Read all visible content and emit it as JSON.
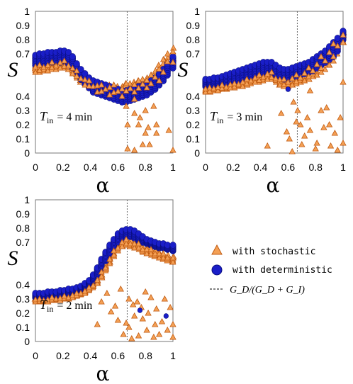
{
  "chart_data": [
    {
      "type": "scatter",
      "panel_label": {
        "symbol": "T",
        "subscript": "in",
        "value": "= 4 min"
      },
      "xlabel": "α",
      "ylabel": "S",
      "xlim": [
        0,
        1
      ],
      "ylim": [
        0,
        1
      ],
      "xticks": [
        "0",
        "0.2",
        "0.4",
        "0.6",
        "0.8",
        "1"
      ],
      "yticks": [
        "0",
        "0.1",
        "0.2",
        "0.3",
        "0.4",
        "0.7",
        "0.8",
        "0.9",
        "1"
      ],
      "vline_x": 0.667,
      "deterministic_band": {
        "x": [
          0.0,
          0.03,
          0.06,
          0.09,
          0.12,
          0.15,
          0.18,
          0.21,
          0.24,
          0.27,
          0.3,
          0.33,
          0.36,
          0.39,
          0.42,
          0.45,
          0.48,
          0.51,
          0.54,
          0.57,
          0.6,
          0.63,
          0.66,
          0.69,
          0.72,
          0.75,
          0.78,
          0.81,
          0.84,
          0.87,
          0.9,
          0.93,
          0.96,
          1.0
        ],
        "low": [
          0.62,
          0.63,
          0.63,
          0.64,
          0.64,
          0.64,
          0.64,
          0.64,
          0.63,
          0.6,
          0.56,
          0.52,
          0.49,
          0.46,
          0.43,
          0.42,
          0.41,
          0.4,
          0.39,
          0.38,
          0.37,
          0.36,
          0.36,
          0.37,
          0.38,
          0.39,
          0.4,
          0.41,
          0.43,
          0.45,
          0.48,
          0.51,
          0.55,
          0.6
        ],
        "high": [
          0.69,
          0.7,
          0.7,
          0.71,
          0.71,
          0.71,
          0.72,
          0.72,
          0.71,
          0.68,
          0.63,
          0.59,
          0.56,
          0.53,
          0.51,
          0.5,
          0.49,
          0.48,
          0.47,
          0.46,
          0.45,
          0.44,
          0.44,
          0.45,
          0.46,
          0.47,
          0.48,
          0.49,
          0.51,
          0.53,
          0.56,
          0.59,
          0.63,
          0.68
        ]
      },
      "stochastic_band": {
        "x": [
          0.0,
          0.03,
          0.06,
          0.09,
          0.12,
          0.15,
          0.18,
          0.21,
          0.24,
          0.27,
          0.3,
          0.33,
          0.36,
          0.39,
          0.42,
          0.45,
          0.48,
          0.51,
          0.54,
          0.57,
          0.6,
          0.63,
          0.66,
          0.69,
          0.72,
          0.75,
          0.78,
          0.81,
          0.84,
          0.87,
          0.9,
          0.93,
          0.96,
          1.0
        ],
        "low": [
          0.57,
          0.57,
          0.58,
          0.58,
          0.59,
          0.59,
          0.6,
          0.6,
          0.59,
          0.56,
          0.53,
          0.5,
          0.48,
          0.46,
          0.44,
          0.43,
          0.42,
          0.42,
          0.41,
          0.41,
          0.4,
          0.4,
          0.42,
          0.42,
          0.43,
          0.44,
          0.45,
          0.46,
          0.47,
          0.49,
          0.51,
          0.54,
          0.59,
          0.64
        ],
        "high": [
          0.62,
          0.62,
          0.63,
          0.63,
          0.64,
          0.64,
          0.65,
          0.65,
          0.64,
          0.61,
          0.58,
          0.55,
          0.53,
          0.51,
          0.5,
          0.49,
          0.48,
          0.48,
          0.48,
          0.48,
          0.47,
          0.47,
          0.49,
          0.49,
          0.5,
          0.51,
          0.52,
          0.53,
          0.55,
          0.58,
          0.62,
          0.66,
          0.7,
          0.74
        ]
      },
      "stochastic_scatter": [
        [
          0.66,
          0.33
        ],
        [
          0.67,
          0.2
        ],
        [
          0.67,
          0.03
        ],
        [
          0.72,
          0.02
        ],
        [
          0.72,
          0.28
        ],
        [
          0.75,
          0.2
        ],
        [
          0.78,
          0.06
        ],
        [
          0.8,
          0.14
        ],
        [
          0.82,
          0.18
        ],
        [
          0.86,
          0.33
        ],
        [
          0.88,
          0.14
        ],
        [
          0.88,
          0.2
        ],
        [
          0.97,
          0.16
        ],
        [
          1.0,
          0.02
        ],
        [
          0.72,
          0.38
        ],
        [
          0.76,
          0.25
        ],
        [
          0.8,
          0.3
        ],
        [
          0.83,
          0.06
        ]
      ],
      "deterministic_scatter": []
    },
    {
      "type": "scatter",
      "panel_label": {
        "symbol": "T",
        "subscript": "in",
        "value": "= 3 min"
      },
      "xlabel": "α",
      "ylabel": "S",
      "xlim": [
        0,
        1
      ],
      "ylim": [
        0,
        1
      ],
      "xticks": [
        "0",
        "0.2",
        "0.4",
        "0.6",
        "0.8",
        "1"
      ],
      "yticks": [
        "0",
        "0.1",
        "0.2",
        "0.3",
        "0.4",
        "0.7",
        "0.8",
        "0.9",
        "1"
      ],
      "vline_x": 0.667,
      "deterministic_band": {
        "x": [
          0.0,
          0.03,
          0.06,
          0.09,
          0.12,
          0.15,
          0.18,
          0.21,
          0.24,
          0.27,
          0.3,
          0.33,
          0.36,
          0.39,
          0.42,
          0.45,
          0.48,
          0.51,
          0.54,
          0.57,
          0.6,
          0.63,
          0.66,
          0.69,
          0.72,
          0.75,
          0.78,
          0.81,
          0.84,
          0.87,
          0.9,
          0.93,
          0.96,
          1.0
        ],
        "low": [
          0.47,
          0.47,
          0.48,
          0.48,
          0.49,
          0.49,
          0.5,
          0.5,
          0.51,
          0.52,
          0.53,
          0.54,
          0.55,
          0.56,
          0.56,
          0.57,
          0.57,
          0.55,
          0.53,
          0.52,
          0.52,
          0.53,
          0.54,
          0.55,
          0.56,
          0.57,
          0.58,
          0.6,
          0.62,
          0.64,
          0.66,
          0.68,
          0.72,
          0.8
        ],
        "high": [
          0.52,
          0.52,
          0.53,
          0.53,
          0.54,
          0.55,
          0.56,
          0.57,
          0.58,
          0.59,
          0.6,
          0.61,
          0.62,
          0.63,
          0.64,
          0.64,
          0.64,
          0.62,
          0.6,
          0.59,
          0.59,
          0.6,
          0.61,
          0.62,
          0.63,
          0.64,
          0.66,
          0.68,
          0.7,
          0.72,
          0.75,
          0.78,
          0.81,
          0.86
        ]
      },
      "stochastic_band": {
        "x": [
          0.0,
          0.03,
          0.06,
          0.09,
          0.12,
          0.15,
          0.18,
          0.21,
          0.24,
          0.27,
          0.3,
          0.33,
          0.36,
          0.39,
          0.42,
          0.45,
          0.48,
          0.51,
          0.54,
          0.57,
          0.6,
          0.63,
          0.66,
          0.69,
          0.72,
          0.75,
          0.78,
          0.81,
          0.84,
          0.87,
          0.9,
          0.93,
          0.96,
          1.0
        ],
        "low": [
          0.43,
          0.43,
          0.44,
          0.44,
          0.45,
          0.45,
          0.46,
          0.46,
          0.47,
          0.47,
          0.48,
          0.49,
          0.5,
          0.5,
          0.51,
          0.52,
          0.52,
          0.5,
          0.48,
          0.47,
          0.47,
          0.48,
          0.49,
          0.5,
          0.51,
          0.52,
          0.54,
          0.55,
          0.57,
          0.59,
          0.62,
          0.65,
          0.7,
          0.78
        ],
        "high": [
          0.46,
          0.46,
          0.47,
          0.47,
          0.48,
          0.48,
          0.49,
          0.49,
          0.5,
          0.51,
          0.52,
          0.53,
          0.54,
          0.55,
          0.56,
          0.57,
          0.57,
          0.55,
          0.53,
          0.52,
          0.53,
          0.54,
          0.55,
          0.56,
          0.58,
          0.6,
          0.62,
          0.65,
          0.68,
          0.71,
          0.74,
          0.77,
          0.81,
          0.85
        ]
      },
      "stochastic_scatter": [
        [
          0.45,
          0.05
        ],
        [
          0.55,
          0.28
        ],
        [
          0.59,
          0.15
        ],
        [
          0.61,
          0.1
        ],
        [
          0.63,
          0.01
        ],
        [
          0.64,
          0.36
        ],
        [
          0.67,
          0.3
        ],
        [
          0.69,
          0.2
        ],
        [
          0.7,
          0.06
        ],
        [
          0.72,
          0.12
        ],
        [
          0.74,
          0.25
        ],
        [
          0.76,
          0.16
        ],
        [
          0.8,
          0.03
        ],
        [
          0.81,
          0.07
        ],
        [
          0.84,
          0.3
        ],
        [
          0.86,
          0.18
        ],
        [
          0.88,
          0.32
        ],
        [
          0.9,
          0.2
        ],
        [
          0.91,
          0.05
        ],
        [
          0.94,
          0.14
        ],
        [
          0.96,
          0.02
        ],
        [
          0.98,
          0.25
        ],
        [
          1.0,
          0.07
        ],
        [
          1.0,
          0.5
        ],
        [
          0.76,
          0.44
        ],
        [
          0.66,
          0.22
        ]
      ],
      "deterministic_scatter": [
        [
          0.6,
          0.45
        ]
      ]
    },
    {
      "type": "scatter",
      "panel_label": {
        "symbol": "T",
        "subscript": "in",
        "value": "= 2 min"
      },
      "xlabel": "α",
      "ylabel": "S",
      "xlim": [
        0,
        1
      ],
      "ylim": [
        0,
        1
      ],
      "xticks": [
        "0",
        "0.2",
        "0.4",
        "0.6",
        "0.8",
        "1"
      ],
      "yticks": [
        "0",
        "0.1",
        "0.2",
        "0.3",
        "0.4",
        "0.7",
        "0.8",
        "0.9",
        "1"
      ],
      "vline_x": 0.667,
      "deterministic_band": {
        "x": [
          0.0,
          0.03,
          0.06,
          0.09,
          0.12,
          0.15,
          0.18,
          0.21,
          0.24,
          0.27,
          0.3,
          0.33,
          0.36,
          0.39,
          0.42,
          0.45,
          0.48,
          0.51,
          0.54,
          0.57,
          0.6,
          0.63,
          0.66,
          0.69,
          0.72,
          0.75,
          0.78,
          0.81,
          0.84,
          0.87,
          0.9,
          0.93,
          0.96,
          1.0
        ],
        "low": [
          0.31,
          0.31,
          0.31,
          0.31,
          0.32,
          0.32,
          0.32,
          0.33,
          0.33,
          0.34,
          0.35,
          0.36,
          0.38,
          0.4,
          0.43,
          0.47,
          0.52,
          0.57,
          0.62,
          0.66,
          0.7,
          0.73,
          0.74,
          0.74,
          0.73,
          0.71,
          0.7,
          0.69,
          0.68,
          0.67,
          0.66,
          0.66,
          0.65,
          0.64
        ],
        "high": [
          0.34,
          0.34,
          0.34,
          0.35,
          0.35,
          0.35,
          0.36,
          0.36,
          0.37,
          0.37,
          0.38,
          0.39,
          0.41,
          0.43,
          0.47,
          0.52,
          0.58,
          0.63,
          0.68,
          0.72,
          0.76,
          0.78,
          0.79,
          0.79,
          0.78,
          0.76,
          0.74,
          0.72,
          0.71,
          0.7,
          0.69,
          0.69,
          0.68,
          0.68
        ]
      },
      "stochastic_band": {
        "x": [
          0.0,
          0.03,
          0.06,
          0.09,
          0.12,
          0.15,
          0.18,
          0.21,
          0.24,
          0.27,
          0.3,
          0.33,
          0.36,
          0.39,
          0.42,
          0.45,
          0.48,
          0.51,
          0.54,
          0.57,
          0.6,
          0.63,
          0.66,
          0.69,
          0.72,
          0.75,
          0.78,
          0.81,
          0.84,
          0.87,
          0.9,
          0.93,
          0.96,
          1.0
        ],
        "low": [
          0.28,
          0.28,
          0.28,
          0.28,
          0.29,
          0.29,
          0.29,
          0.3,
          0.3,
          0.31,
          0.32,
          0.33,
          0.34,
          0.36,
          0.38,
          0.41,
          0.45,
          0.5,
          0.55,
          0.6,
          0.64,
          0.67,
          0.68,
          0.67,
          0.66,
          0.65,
          0.63,
          0.62,
          0.61,
          0.6,
          0.59,
          0.58,
          0.57,
          0.56
        ],
        "high": [
          0.3,
          0.3,
          0.3,
          0.3,
          0.31,
          0.31,
          0.31,
          0.32,
          0.32,
          0.33,
          0.34,
          0.35,
          0.36,
          0.38,
          0.41,
          0.44,
          0.49,
          0.54,
          0.59,
          0.64,
          0.68,
          0.71,
          0.72,
          0.71,
          0.7,
          0.69,
          0.67,
          0.66,
          0.65,
          0.64,
          0.63,
          0.62,
          0.61,
          0.6
        ]
      },
      "stochastic_scatter": [
        [
          0.45,
          0.12
        ],
        [
          0.48,
          0.28
        ],
        [
          0.52,
          0.34
        ],
        [
          0.55,
          0.21
        ],
        [
          0.58,
          0.25
        ],
        [
          0.62,
          0.37
        ],
        [
          0.64,
          0.05
        ],
        [
          0.66,
          0.13
        ],
        [
          0.68,
          0.3
        ],
        [
          0.68,
          0.1
        ],
        [
          0.7,
          0.02
        ],
        [
          0.72,
          0.18
        ],
        [
          0.74,
          0.28
        ],
        [
          0.75,
          0.04
        ],
        [
          0.77,
          0.24
        ],
        [
          0.78,
          0.16
        ],
        [
          0.8,
          0.35
        ],
        [
          0.81,
          0.08
        ],
        [
          0.82,
          0.2
        ],
        [
          0.84,
          0.31
        ],
        [
          0.86,
          0.03
        ],
        [
          0.87,
          0.12
        ],
        [
          0.88,
          0.23
        ],
        [
          0.9,
          0.05
        ],
        [
          0.92,
          0.14
        ],
        [
          0.94,
          0.3
        ],
        [
          0.96,
          0.08
        ],
        [
          0.98,
          0.24
        ],
        [
          1.0,
          0.03
        ],
        [
          1.0,
          0.12
        ],
        [
          0.71,
          0.26
        ],
        [
          0.6,
          0.15
        ]
      ],
      "deterministic_scatter": [
        [
          0.76,
          0.22
        ],
        [
          0.95,
          0.18
        ]
      ]
    }
  ],
  "legend": {
    "stochastic": "with stochastic",
    "deterministic": "with deterministic",
    "vline_label": "G_D/(G_D + G_I)"
  },
  "colors": {
    "stochastic_fill": "#f4a055",
    "stochastic_edge": "#c05a10",
    "deterministic_fill": "#1a1ec8",
    "deterministic_edge": "#0a0e80",
    "vline": "#555555"
  }
}
